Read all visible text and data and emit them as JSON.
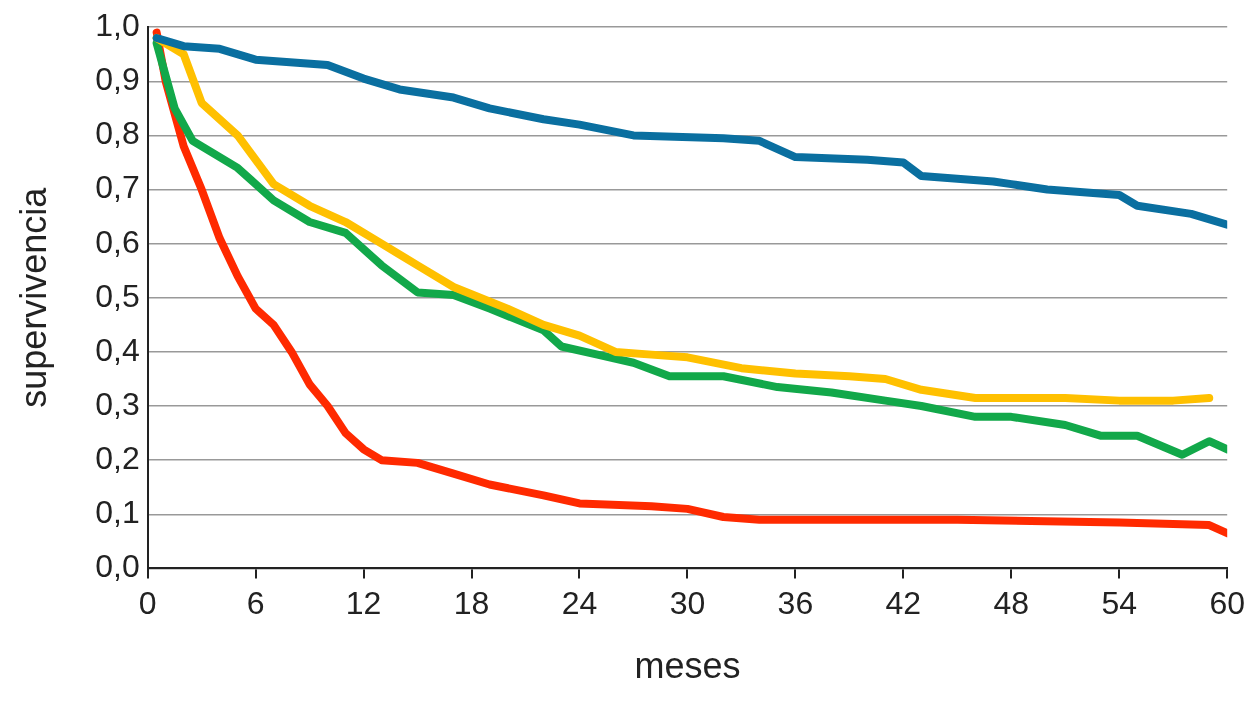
{
  "chart_data": {
    "type": "line",
    "xlabel": "meses",
    "ylabel": "supervivencia",
    "xlim": [
      0,
      60
    ],
    "xticks": [
      0,
      6,
      12,
      18,
      24,
      30,
      36,
      42,
      48,
      54,
      60
    ],
    "ylim": [
      0,
      1
    ],
    "yticks": [
      {
        "value": 0,
        "label": "0,0"
      },
      {
        "value": 0.1,
        "label": "0,1"
      },
      {
        "value": 0.2,
        "label": "0,2"
      },
      {
        "value": 0.3,
        "label": "0,3"
      },
      {
        "value": 0.4,
        "label": "0,4"
      },
      {
        "value": 0.5,
        "label": "0,5"
      },
      {
        "value": 0.6,
        "label": "0,6"
      },
      {
        "value": 0.7,
        "label": "0,7"
      },
      {
        "value": 0.8,
        "label": "0,8"
      },
      {
        "value": 0.9,
        "label": "0,9"
      },
      {
        "value": 1,
        "label": "1,0"
      }
    ],
    "grid": "y",
    "legend": false,
    "marker": "none",
    "line_style": "solid",
    "series": [
      {
        "color": "#0a6fa0",
        "x": [
          0.5,
          2,
          4,
          6,
          10,
          12,
          14,
          17,
          19,
          22,
          24,
          27,
          32,
          34,
          36,
          40,
          42,
          43,
          47,
          48,
          50,
          54,
          55,
          58,
          60
        ],
        "values": [
          0.98,
          0.965,
          0.96,
          0.94,
          0.93,
          0.905,
          0.885,
          0.87,
          0.85,
          0.83,
          0.82,
          0.8,
          0.795,
          0.79,
          0.76,
          0.755,
          0.75,
          0.725,
          0.715,
          0.71,
          0.7,
          0.69,
          0.67,
          0.655,
          0.635
        ]
      },
      {
        "color": "#ffc000",
        "x": [
          0.5,
          2,
          3,
          5,
          7,
          9,
          11,
          13,
          15,
          17,
          20,
          22,
          24,
          26,
          28,
          30,
          33,
          36,
          39,
          41,
          43,
          46,
          48,
          51,
          54,
          57,
          59
        ],
        "values": [
          0.98,
          0.95,
          0.86,
          0.8,
          0.71,
          0.67,
          0.64,
          0.6,
          0.56,
          0.52,
          0.48,
          0.45,
          0.43,
          0.4,
          0.395,
          0.39,
          0.37,
          0.36,
          0.355,
          0.35,
          0.33,
          0.315,
          0.315,
          0.315,
          0.31,
          0.31,
          0.315
        ]
      },
      {
        "color": "#12a84a",
        "x": [
          0.5,
          1.5,
          2.5,
          5,
          7,
          9,
          11,
          13,
          15,
          17,
          19,
          22,
          23,
          25,
          27,
          29,
          32,
          35,
          38,
          41,
          43,
          46,
          48,
          51,
          53,
          55,
          57.5,
          59,
          60
        ],
        "values": [
          0.97,
          0.85,
          0.79,
          0.74,
          0.68,
          0.64,
          0.62,
          0.56,
          0.51,
          0.505,
          0.48,
          0.44,
          0.41,
          0.395,
          0.38,
          0.355,
          0.355,
          0.335,
          0.325,
          0.31,
          0.3,
          0.28,
          0.28,
          0.265,
          0.245,
          0.245,
          0.21,
          0.235,
          0.22
        ]
      },
      {
        "color": "#ff2a00",
        "x": [
          0.5,
          1,
          2,
          3,
          4,
          5,
          6,
          7,
          8,
          9,
          10,
          11,
          12,
          13,
          15,
          17,
          19,
          22,
          24,
          28,
          30,
          32,
          34,
          36,
          45,
          54,
          59,
          60
        ],
        "values": [
          0.99,
          0.9,
          0.78,
          0.7,
          0.61,
          0.54,
          0.48,
          0.45,
          0.4,
          0.34,
          0.3,
          0.25,
          0.22,
          0.2,
          0.195,
          0.175,
          0.155,
          0.135,
          0.12,
          0.115,
          0.11,
          0.095,
          0.09,
          0.09,
          0.09,
          0.085,
          0.08,
          0.065
        ]
      }
    ]
  }
}
